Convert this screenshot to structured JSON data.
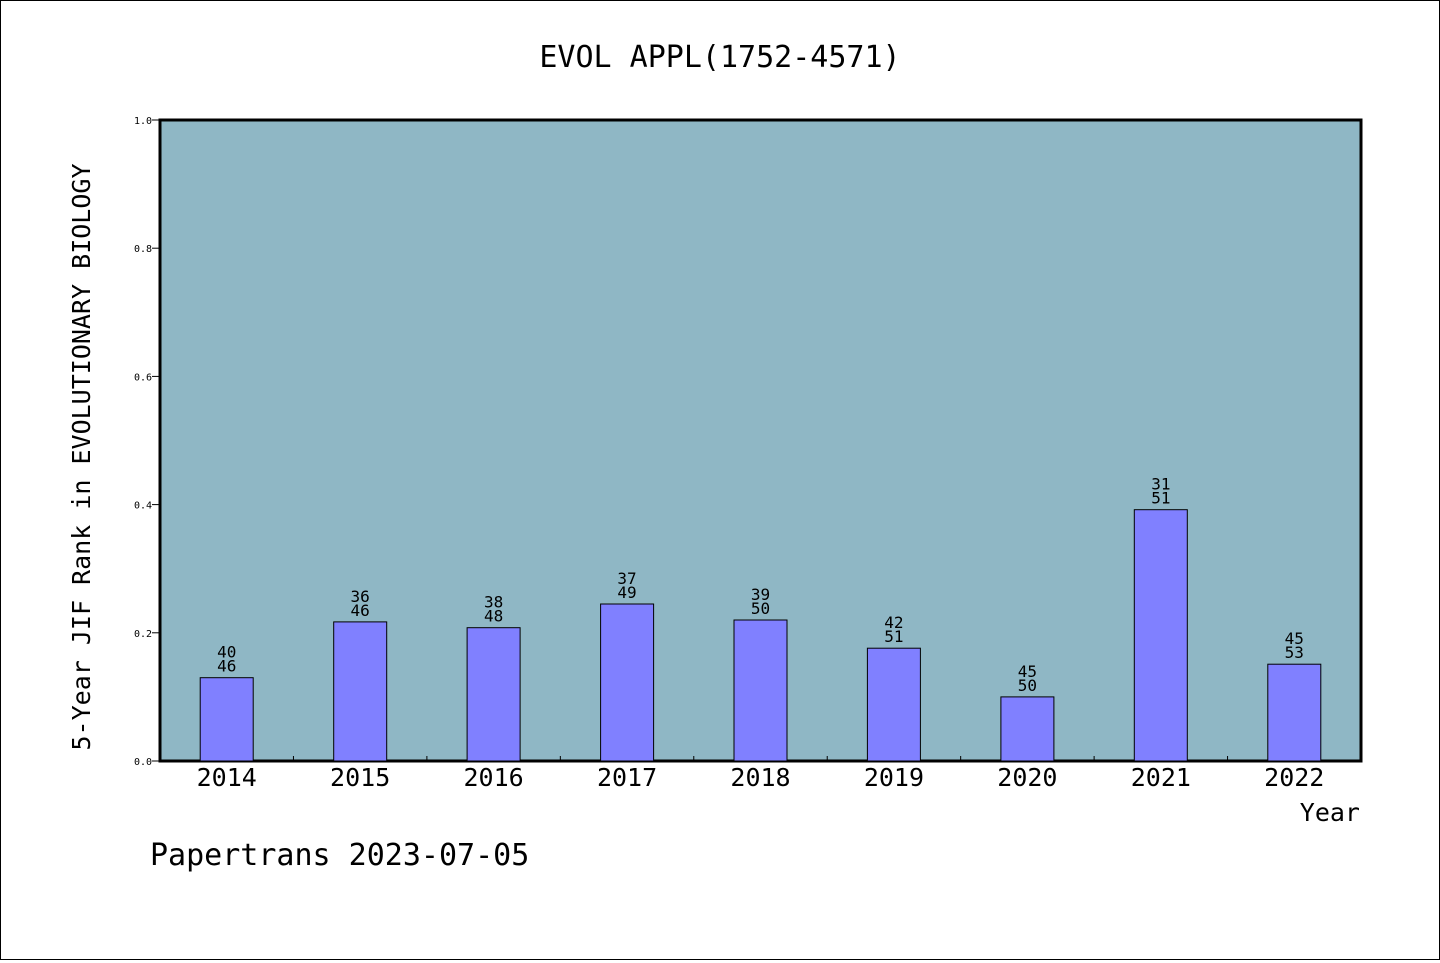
{
  "chart_data": {
    "type": "bar",
    "title": "EVOL APPL(1752-4571)",
    "xlabel": "Year",
    "ylabel": "5-Year JIF Rank in EVOLUTIONARY BIOLOGY",
    "ylim": [
      0,
      1.0
    ],
    "yticks": [
      "0.0",
      "0.2",
      "0.4",
      "0.6",
      "0.8",
      "1.0"
    ],
    "grid": false,
    "categories": [
      "2014",
      "2015",
      "2016",
      "2017",
      "2018",
      "2019",
      "2020",
      "2021",
      "2022"
    ],
    "values": [
      0.13,
      0.217,
      0.208,
      0.245,
      0.22,
      0.176,
      0.1,
      0.392,
      0.151
    ],
    "rank": [
      "40",
      "36",
      "38",
      "37",
      "39",
      "42",
      "45",
      "31",
      "45"
    ],
    "total": [
      "46",
      "46",
      "48",
      "49",
      "50",
      "51",
      "50",
      "51",
      "53"
    ],
    "colors": {
      "plot_bg": "#8fb7c5",
      "bar": "#8080ff",
      "bar_edge": "#000000"
    }
  },
  "footer": {
    "text": "Papertrans 2023-07-05"
  }
}
